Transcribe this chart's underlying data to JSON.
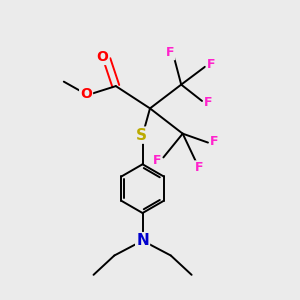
{
  "background_color": "#ebebeb",
  "bond_color": "#000000",
  "O_color": "#ff0000",
  "S_color": "#bbaa00",
  "N_color": "#0000cc",
  "F_color": "#ff22cc",
  "figsize": [
    3.0,
    3.0
  ],
  "dpi": 100,
  "xlim": [
    0,
    10
  ],
  "ylim": [
    0,
    10
  ]
}
